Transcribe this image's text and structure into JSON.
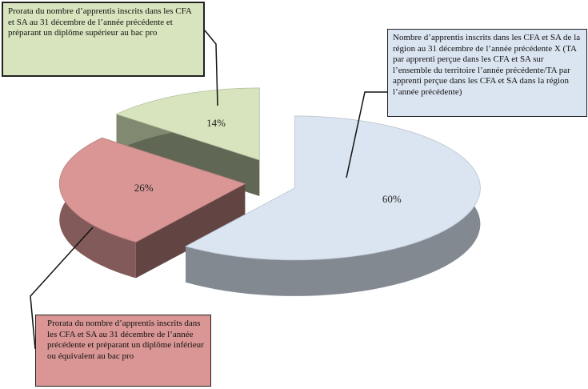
{
  "chart_data": {
    "type": "pie",
    "categories": [
      "Nombre d’apprentis inscrits dans les CFA et SA de la région  au 31 décembre de l’année précédente X (TA par apprenti perçue dans les CFA et SA sur l’ensemble du territoire l’année précédente/TA par apprenti perçue dans les CFA et SA dans la région l’année précédente)",
      "Prorata du nombre d’apprentis inscrits dans les CFA et SA au 31 décembre de l’année précédente et préparant un diplôme inférieur ou équivalent au bac pro",
      "Prorata du nombre d’apprentis inscrits dans les CFA et SA au 31 décembre de l’année précédente et préparant un diplôme supérieur au bac pro"
    ],
    "values": [
      60,
      26,
      14
    ],
    "value_labels": [
      "60%",
      "26%",
      "14%"
    ],
    "colors": [
      "#dbe5f1",
      "#d99694",
      "#d7e4bd"
    ]
  }
}
